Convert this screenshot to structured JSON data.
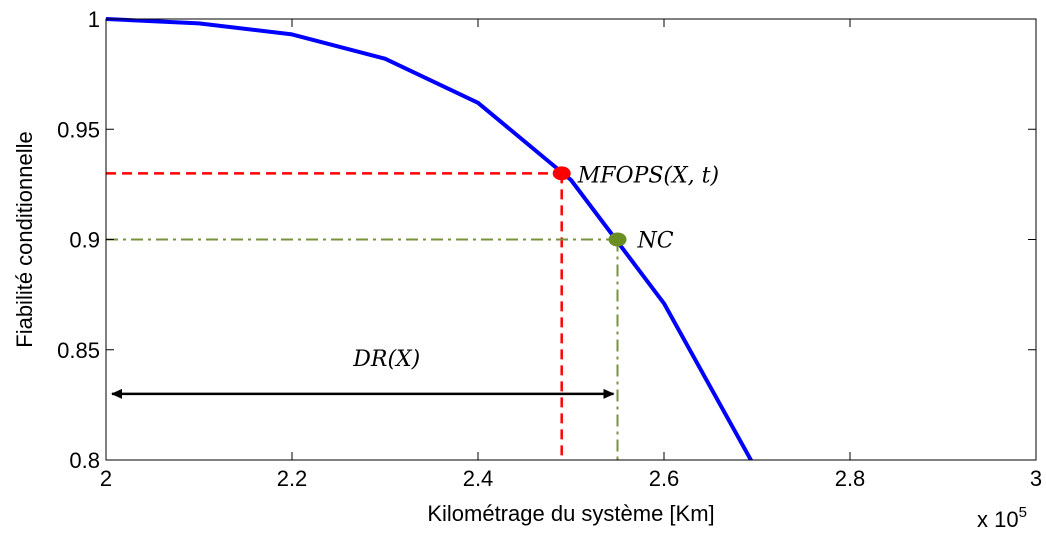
{
  "chart_data": {
    "type": "line",
    "xlabel": "Kilométrage du système [Km]",
    "ylabel": "Fiabilité conditionnelle",
    "x_multiplier_label": "x 10",
    "x_multiplier_exp": "5",
    "xlim": [
      2.0,
      3.0
    ],
    "ylim": [
      0.8,
      1.0
    ],
    "x_ticks": [
      2.0,
      2.2,
      2.4,
      2.6,
      2.8,
      3.0
    ],
    "x_tick_labels": [
      "2",
      "2.2",
      "2.4",
      "2.6",
      "2.8",
      "3"
    ],
    "y_ticks": [
      0.8,
      0.85,
      0.9,
      0.95,
      1.0
    ],
    "y_tick_labels": [
      "0.8",
      "0.85",
      "0.9",
      "0.95",
      "1"
    ],
    "grid": false,
    "series": [
      {
        "color": "#0000ff",
        "x": [
          2.0,
          2.1,
          2.2,
          2.3,
          2.4,
          2.5,
          2.6,
          2.7
        ],
        "y": [
          1.0,
          0.998,
          0.993,
          0.982,
          0.962,
          0.927,
          0.871,
          0.795
        ]
      }
    ],
    "annotations": {
      "mfops": {
        "label": "MFOPS(X, t)",
        "x": 2.49,
        "y": 0.93,
        "color": "#ff0000"
      },
      "nc": {
        "label": "NC",
        "x": 2.55,
        "y": 0.9,
        "color": "#6b8e23",
        "guide_color": "#77933c"
      },
      "dr": {
        "label": "DR(X)",
        "x_from": 2.0,
        "x_to": 2.55,
        "y": 0.83
      }
    }
  }
}
